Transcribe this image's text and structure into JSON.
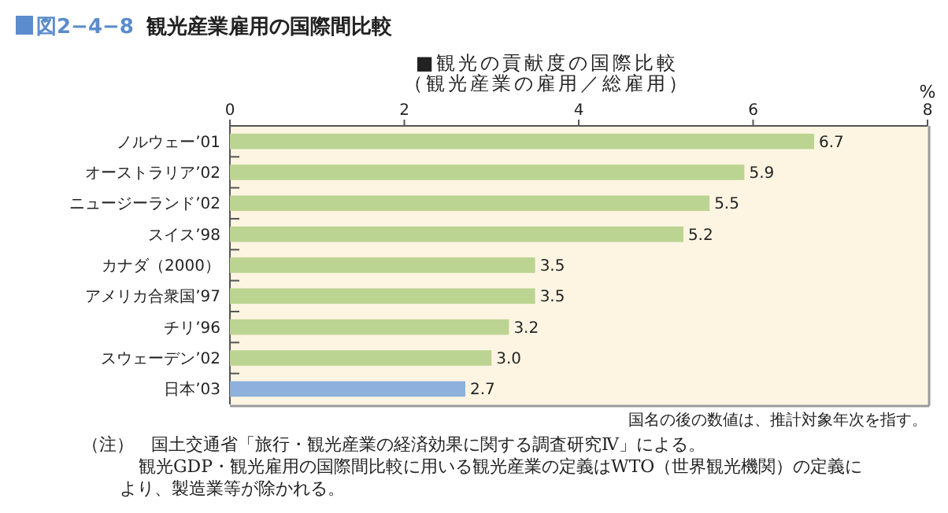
{
  "chart_data": {
    "type": "bar",
    "orientation": "horizontal",
    "title": "図2−4−8　観光産業雇用の国際間比較",
    "subtitle": "■観光の貢献度の国際比較",
    "categories": [
      "ノルウェー’01",
      "オーストラリア’02",
      "ニュージーランド’02",
      "スイス’98",
      "カナダ（2000）",
      "アメリカ合衆国’97",
      "チリ’96",
      "スウェーデン’02",
      "日本’03"
    ],
    "values": [
      6.7,
      5.9,
      5.5,
      5.2,
      3.5,
      3.5,
      3.2,
      3.0,
      2.7
    ],
    "colors": [
      "#bcd491",
      "#bcd491",
      "#bcd491",
      "#bcd491",
      "#bcd491",
      "#bcd491",
      "#bcd491",
      "#bcd491",
      "#8db1dc"
    ],
    "value_labels": [
      "6.7",
      "5.9",
      "5.5",
      "5.2",
      "3.5",
      "3.5",
      "3.2",
      "3.0",
      "2.7"
    ],
    "xlim": [
      0,
      8
    ],
    "xticks": [
      0,
      2,
      4,
      6,
      8
    ],
    "xlabel": "%",
    "grid": false,
    "annotations": [
      "（観光産業の雇用／総雇用）",
      "国名の後の数値は、推計対象年次を指す。",
      "（注）　国土交通省「旅行・観光産業の経済効果に関する調査研究Ⅳ」による。",
      "観光GDP・観光雇用の国際間比較に用いる観光産業の定義はWTO（世界観光機関）の定義に",
      "より、製造業等が除かれる。"
    ]
  }
}
